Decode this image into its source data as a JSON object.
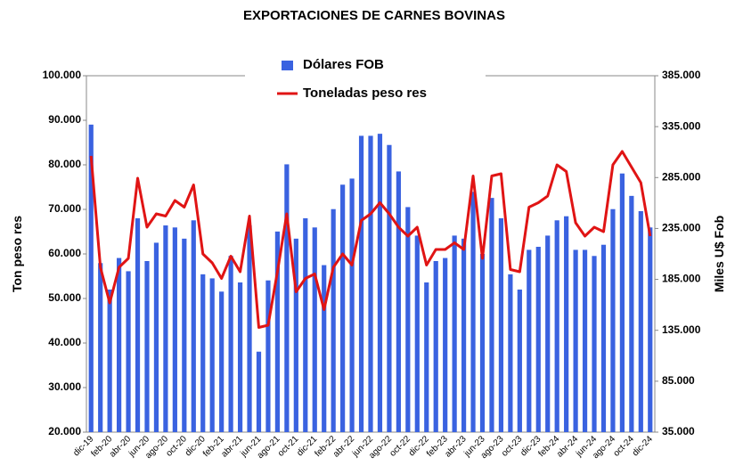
{
  "chart_data": {
    "type": "bar_line",
    "title": "EXPORTACIONES DE CARNES BOVINAS",
    "y_label": "Ton peso res",
    "y2_label": "Miles U$ Fob",
    "categories": [
      "dic-19",
      null,
      "feb-20",
      null,
      "abr-20",
      null,
      "jun-20",
      null,
      "ago-20",
      null,
      "oct-20",
      null,
      "dic-20",
      null,
      "feb-21",
      null,
      "abr-21",
      null,
      "jun-21",
      null,
      "ago-21",
      null,
      "oct-21",
      null,
      "dic-21",
      null,
      "feb-22",
      null,
      "abr-22",
      null,
      "jun-22",
      null,
      "ago-22",
      null,
      "oct-22",
      null,
      "dic-22",
      null,
      "feb-23",
      null,
      "abr-23",
      null,
      "jun-23",
      null,
      "ago-23",
      null,
      "oct-23",
      null,
      "dic-23",
      null,
      "feb-24",
      null,
      "abr-24",
      null,
      "jun-24",
      null,
      "ago-24",
      null,
      "oct-24",
      null,
      "dic-24"
    ],
    "series": [
      {
        "name": "Dólares FOB",
        "type": "bar",
        "axis": "y2",
        "color": "#3a62e0",
        "values": [
          337000,
          201000,
          175000,
          206000,
          193000,
          245000,
          203000,
          221000,
          238000,
          236000,
          225000,
          243000,
          190000,
          186000,
          173000,
          208000,
          182000,
          238000,
          114000,
          184000,
          232000,
          298000,
          225000,
          245000,
          236000,
          199000,
          254000,
          278000,
          284000,
          326000,
          326000,
          328000,
          317000,
          291000,
          256000,
          228000,
          182000,
          203000,
          206000,
          228000,
          225000,
          271000,
          210000,
          265000,
          245000,
          190000,
          175000,
          214000,
          217000,
          228000,
          243000,
          247000,
          214000,
          214000,
          208000,
          219000,
          254000,
          289000,
          267000,
          252000,
          236000
        ]
      },
      {
        "name": "Toneladas peso res",
        "type": "line",
        "axis": "y",
        "color": "#e01414",
        "values": [
          82000,
          57000,
          49000,
          57000,
          59000,
          77000,
          66000,
          69000,
          68500,
          72000,
          70500,
          75500,
          60000,
          58000,
          54500,
          59500,
          56000,
          68500,
          43500,
          44000,
          56000,
          69000,
          51500,
          54500,
          55500,
          47500,
          57000,
          60000,
          57500,
          67500,
          69000,
          71500,
          69000,
          66000,
          64000,
          66000,
          57500,
          61000,
          61000,
          62500,
          61000,
          77500,
          59000,
          77500,
          78000,
          56500,
          56000,
          70500,
          71500,
          73000,
          80000,
          78500,
          67000,
          64000,
          66000,
          65000,
          80000,
          83000,
          79500,
          76000,
          64000
        ]
      }
    ],
    "ylim": [
      20000,
      100000
    ],
    "yticks": [
      {
        "value": 20000,
        "label": "20.000"
      },
      {
        "value": 30000,
        "label": "30.000"
      },
      {
        "value": 40000,
        "label": "40.000"
      },
      {
        "value": 50000,
        "label": "50.000"
      },
      {
        "value": 60000,
        "label": "60.000"
      },
      {
        "value": 70000,
        "label": "70.000"
      },
      {
        "value": 80000,
        "label": "80.000"
      },
      {
        "value": 90000,
        "label": "90.000"
      },
      {
        "value": 100000,
        "label": "100.000"
      }
    ],
    "y2lim": [
      35000,
      385000
    ],
    "y2ticks": [
      {
        "value": 35000,
        "label": "35.000"
      },
      {
        "value": 85000,
        "label": "85.000"
      },
      {
        "value": 135000,
        "label": "135.000"
      },
      {
        "value": 185000,
        "label": "185.000"
      },
      {
        "value": 235000,
        "label": "235.000"
      },
      {
        "value": 285000,
        "label": "285.000"
      },
      {
        "value": 335000,
        "label": "335.000"
      },
      {
        "value": 385000,
        "label": "385.000"
      }
    ],
    "legend": "top"
  }
}
